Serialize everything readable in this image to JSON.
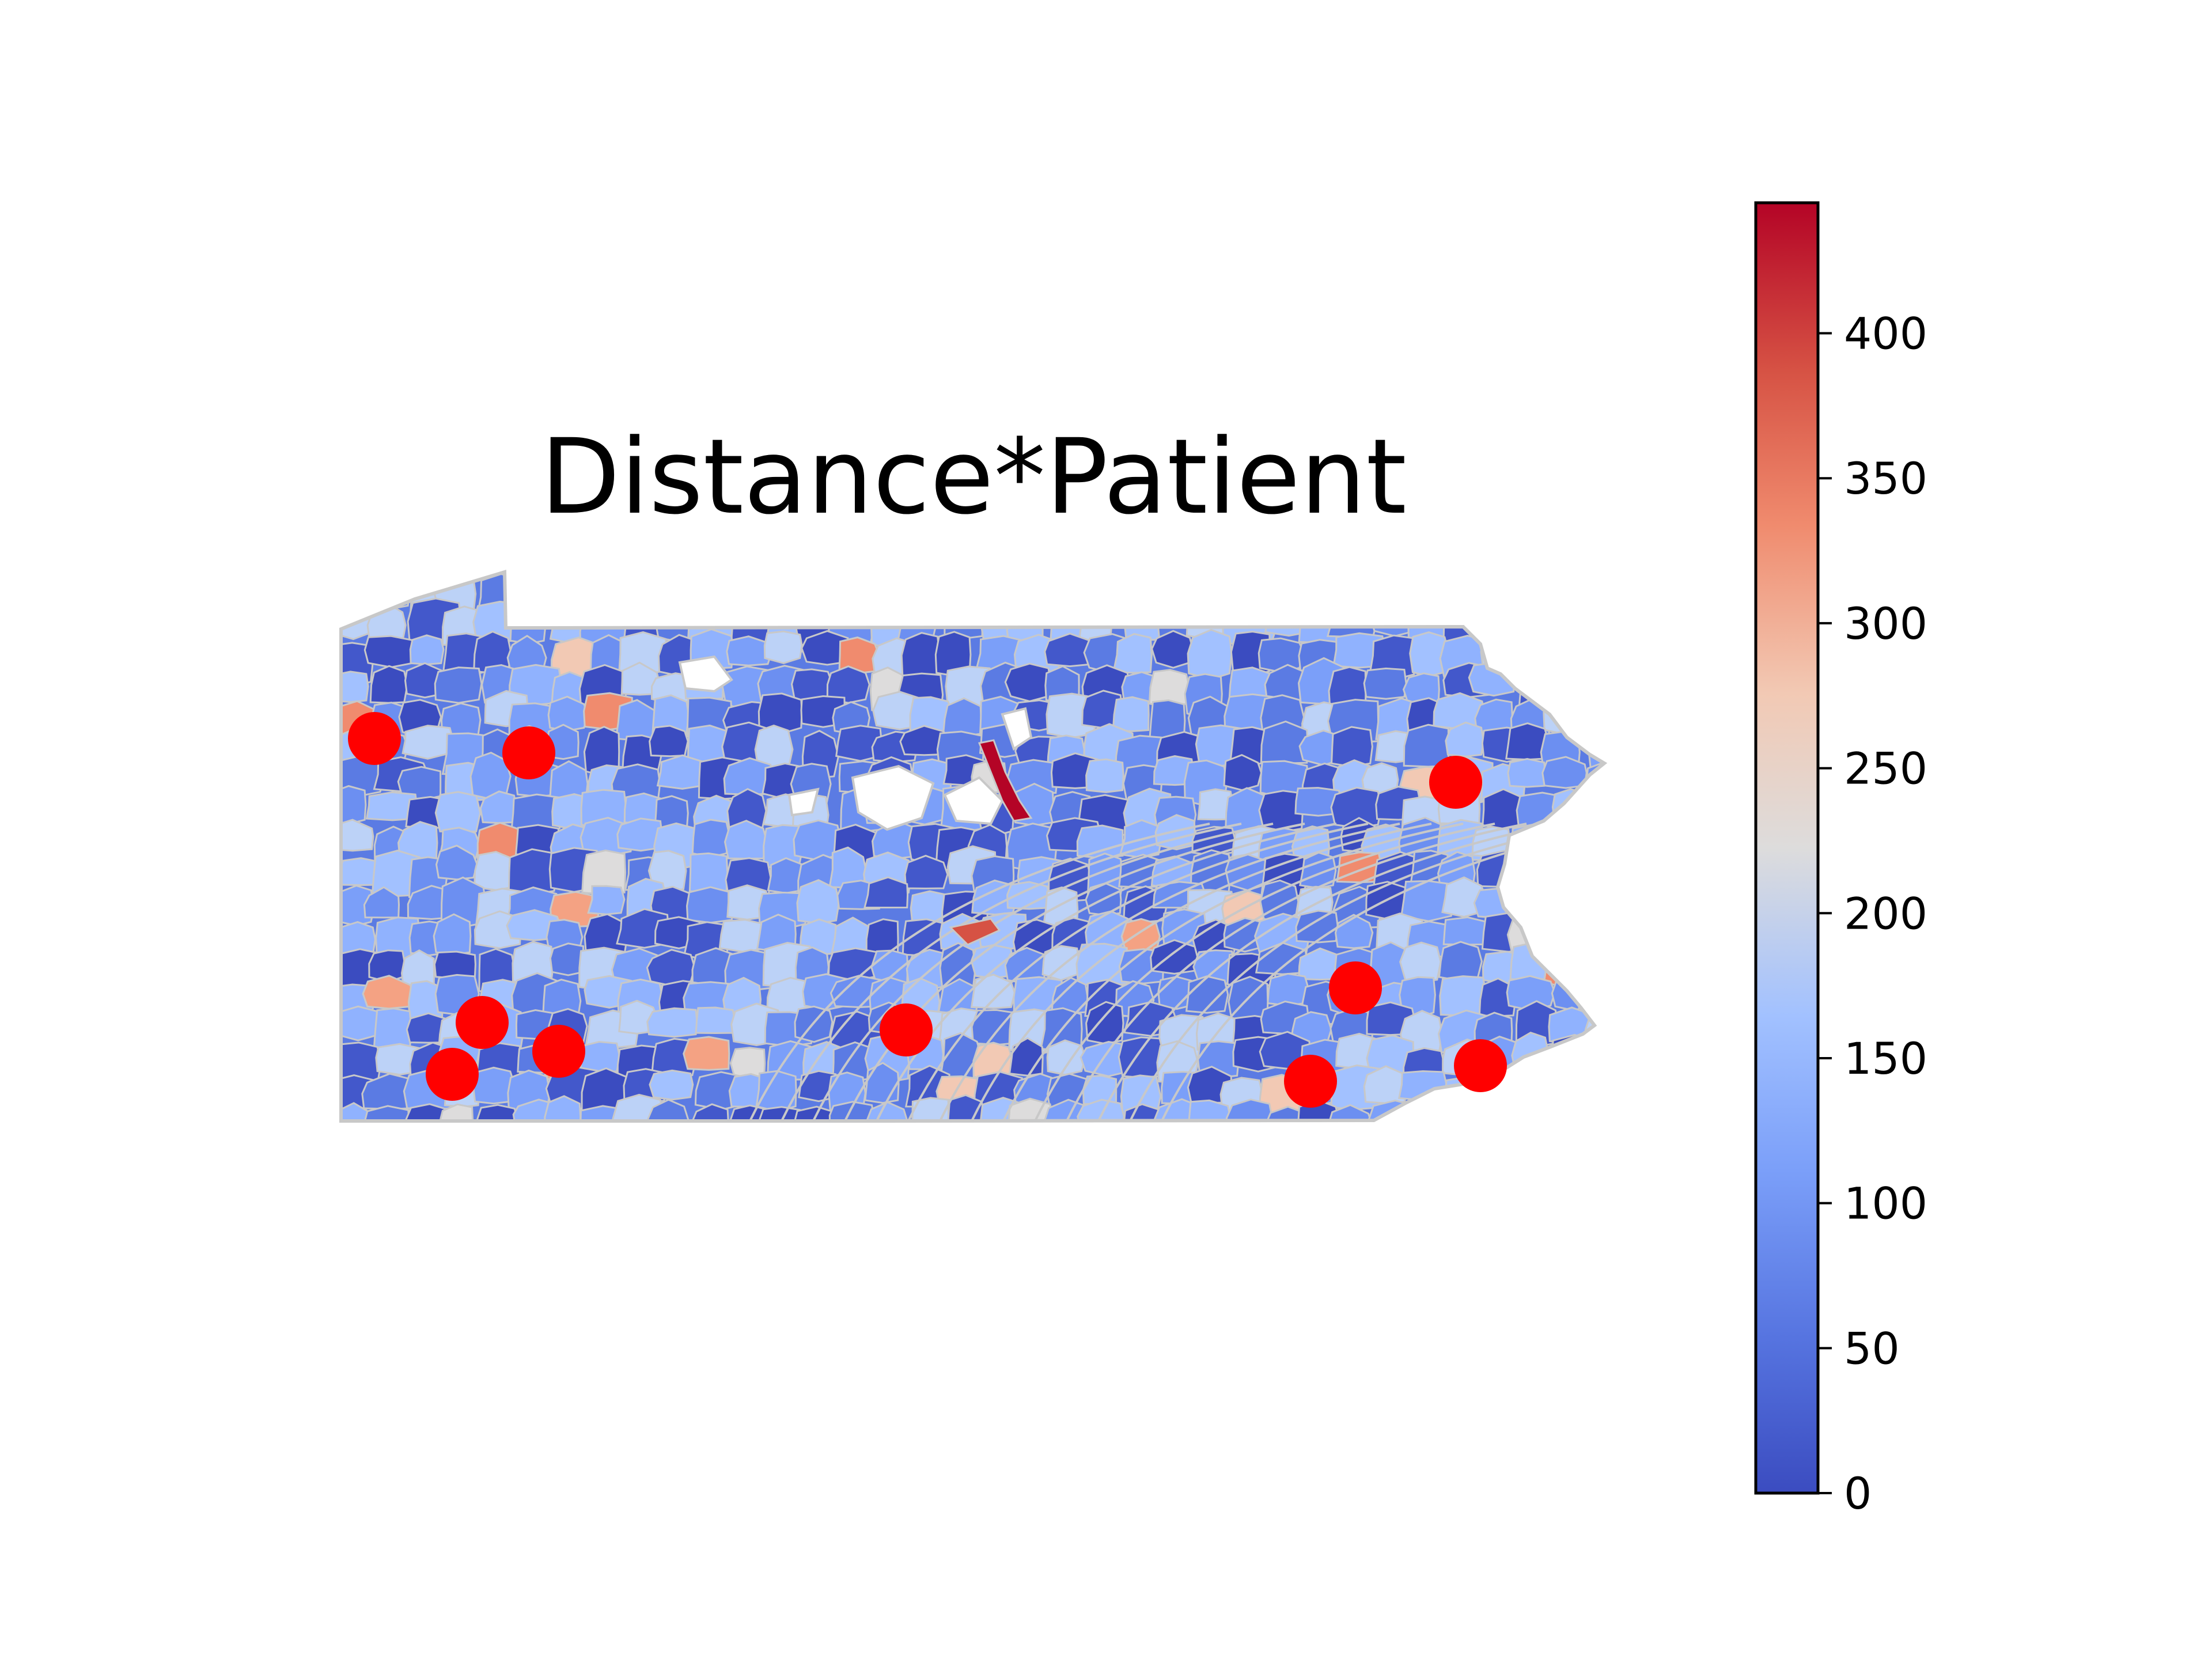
{
  "title": "Distance*Patient",
  "map": {
    "region_type": "zip-code areas",
    "boundary_color": "#c8c8c8",
    "missing_color": "#ffffff",
    "marker_color": "#ff0000",
    "marker_icon": "filled-circle",
    "marker_count": 11
  },
  "colorbar": {
    "colormap": "coolwarm",
    "low_color": "#3b4cc0",
    "mid_color": "#dddddd",
    "high_color": "#b40426",
    "range": [
      0,
      445
    ],
    "tick_values": [
      0,
      50,
      100,
      150,
      200,
      250,
      300,
      350,
      400
    ],
    "tick_labels": [
      "0",
      "50",
      "100",
      "150",
      "200",
      "250",
      "300",
      "350",
      "400"
    ]
  }
}
